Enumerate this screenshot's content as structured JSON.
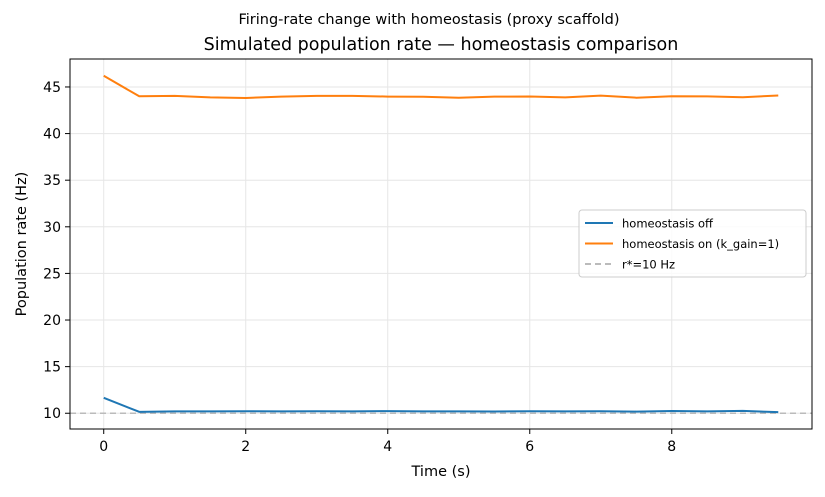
{
  "figure": {
    "suptitle": "Firing-rate change with homeostasis (proxy scaffold)"
  },
  "chart_data": {
    "type": "line",
    "title": "Simulated population rate — homeostasis comparison",
    "xlabel": "Time (s)",
    "ylabel": "Population rate (Hz)",
    "xlim": [
      -0.475,
      9.975
    ],
    "ylim": [
      8.31,
      48.0
    ],
    "xticks": [
      0,
      2,
      4,
      6,
      8
    ],
    "yticks": [
      10,
      15,
      20,
      25,
      30,
      35,
      40,
      45
    ],
    "grid": true,
    "legend_position": "center-right",
    "x": [
      0,
      0.5,
      1,
      1.5,
      2,
      2.5,
      3,
      3.5,
      4,
      4.5,
      5,
      5.5,
      6,
      6.5,
      7,
      7.5,
      8,
      8.5,
      9,
      9.5
    ],
    "series": [
      {
        "name": "homeostasis off",
        "color": "#1f77b4",
        "style": "solid",
        "values": [
          11.65,
          10.15,
          10.2,
          10.2,
          10.22,
          10.2,
          10.21,
          10.2,
          10.23,
          10.2,
          10.2,
          10.19,
          10.21,
          10.2,
          10.22,
          10.18,
          10.24,
          10.2,
          10.25,
          10.12
        ]
      },
      {
        "name": "homeostasis on (k_gain=1)",
        "color": "#ff7f0e",
        "style": "solid",
        "values": [
          46.2,
          44.0,
          44.05,
          43.88,
          43.82,
          43.96,
          44.05,
          44.05,
          43.97,
          43.95,
          43.85,
          43.96,
          43.98,
          43.88,
          44.07,
          43.85,
          44.01,
          43.99,
          43.9,
          44.08
        ]
      }
    ],
    "reference_lines": [
      {
        "name": "r*=10 Hz",
        "y": 10,
        "color": "#bbbbbb",
        "style": "dashed"
      }
    ]
  }
}
